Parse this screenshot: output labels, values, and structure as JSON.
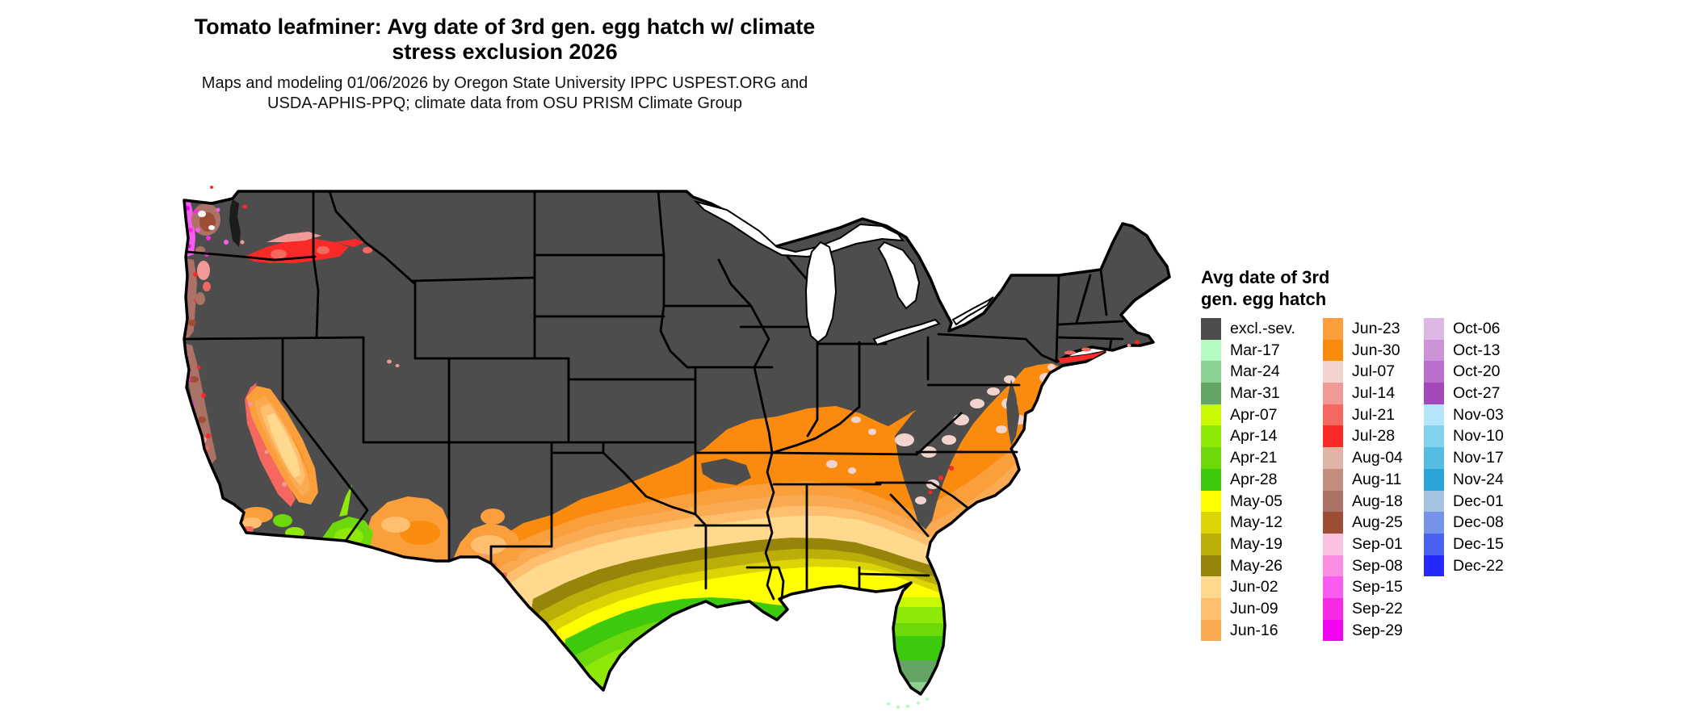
{
  "title": {
    "line1": "Tomato leafminer: Avg date of 3rd gen. egg hatch w/ climate",
    "line2": "stress exclusion 2026"
  },
  "subtitle": {
    "line1": "Maps and modeling 01/06/2026 by Oregon State University IPPC USPEST.ORG and",
    "line2": "USDA-APHIS-PPQ; climate data from OSU PRISM Climate Group"
  },
  "legend": {
    "title_line1": "Avg date of 3rd",
    "title_line2": "gen. egg hatch",
    "columns": [
      [
        {
          "label": "excl.-sev.",
          "color": "#4d4d4d"
        },
        {
          "label": "Mar-17",
          "color": "#b5fbc1"
        },
        {
          "label": "Mar-24",
          "color": "#8cd093"
        },
        {
          "label": "Mar-31",
          "color": "#64a566"
        },
        {
          "label": "Apr-07",
          "color": "#c9f903"
        },
        {
          "label": "Apr-14",
          "color": "#8fe908"
        },
        {
          "label": "Apr-21",
          "color": "#6ed90a"
        },
        {
          "label": "Apr-28",
          "color": "#3dca0d"
        },
        {
          "label": "May-05",
          "color": "#ffff00"
        },
        {
          "label": "May-12",
          "color": "#dcd405"
        },
        {
          "label": "May-19",
          "color": "#bcae08"
        },
        {
          "label": "May-26",
          "color": "#97850b"
        },
        {
          "label": "Jun-02",
          "color": "#ffd98e"
        },
        {
          "label": "Jun-09",
          "color": "#ffbf6e"
        },
        {
          "label": "Jun-16",
          "color": "#faaa50"
        }
      ],
      [
        {
          "label": "Jun-23",
          "color": "#fb9e3c"
        },
        {
          "label": "Jun-30",
          "color": "#fa8b0e"
        },
        {
          "label": "Jul-07",
          "color": "#f2d3ce"
        },
        {
          "label": "Jul-14",
          "color": "#ef9a96"
        },
        {
          "label": "Jul-21",
          "color": "#f4685f"
        },
        {
          "label": "Jul-28",
          "color": "#f92a28"
        },
        {
          "label": "Aug-04",
          "color": "#ddb4a5"
        },
        {
          "label": "Aug-11",
          "color": "#c18d7d"
        },
        {
          "label": "Aug-18",
          "color": "#ab7365"
        },
        {
          "label": "Aug-25",
          "color": "#9c4f35"
        },
        {
          "label": "Sep-01",
          "color": "#fbc1e0"
        },
        {
          "label": "Sep-08",
          "color": "#fa8ee2"
        },
        {
          "label": "Sep-15",
          "color": "#fa5bf1"
        },
        {
          "label": "Sep-22",
          "color": "#f92ae4"
        },
        {
          "label": "Sep-29",
          "color": "#f105f1"
        }
      ],
      [
        {
          "label": "Oct-06",
          "color": "#ddb8e4"
        },
        {
          "label": "Oct-13",
          "color": "#cc93d7"
        },
        {
          "label": "Oct-20",
          "color": "#b96fc9"
        },
        {
          "label": "Oct-27",
          "color": "#a447b8"
        },
        {
          "label": "Nov-03",
          "color": "#b5e4fb"
        },
        {
          "label": "Nov-10",
          "color": "#82d2ee"
        },
        {
          "label": "Nov-17",
          "color": "#55bce4"
        },
        {
          "label": "Nov-24",
          "color": "#2ba5d7"
        },
        {
          "label": "Dec-01",
          "color": "#a3c3e0"
        },
        {
          "label": "Dec-08",
          "color": "#7693ea"
        },
        {
          "label": "Dec-15",
          "color": "#4a62f2"
        },
        {
          "label": "Dec-22",
          "color": "#2428fb"
        }
      ]
    ]
  },
  "map": {
    "region": "Continental United States",
    "colors": {
      "excluded": "#4d4d4d",
      "water": "#ffffff",
      "border": "#000000"
    }
  }
}
